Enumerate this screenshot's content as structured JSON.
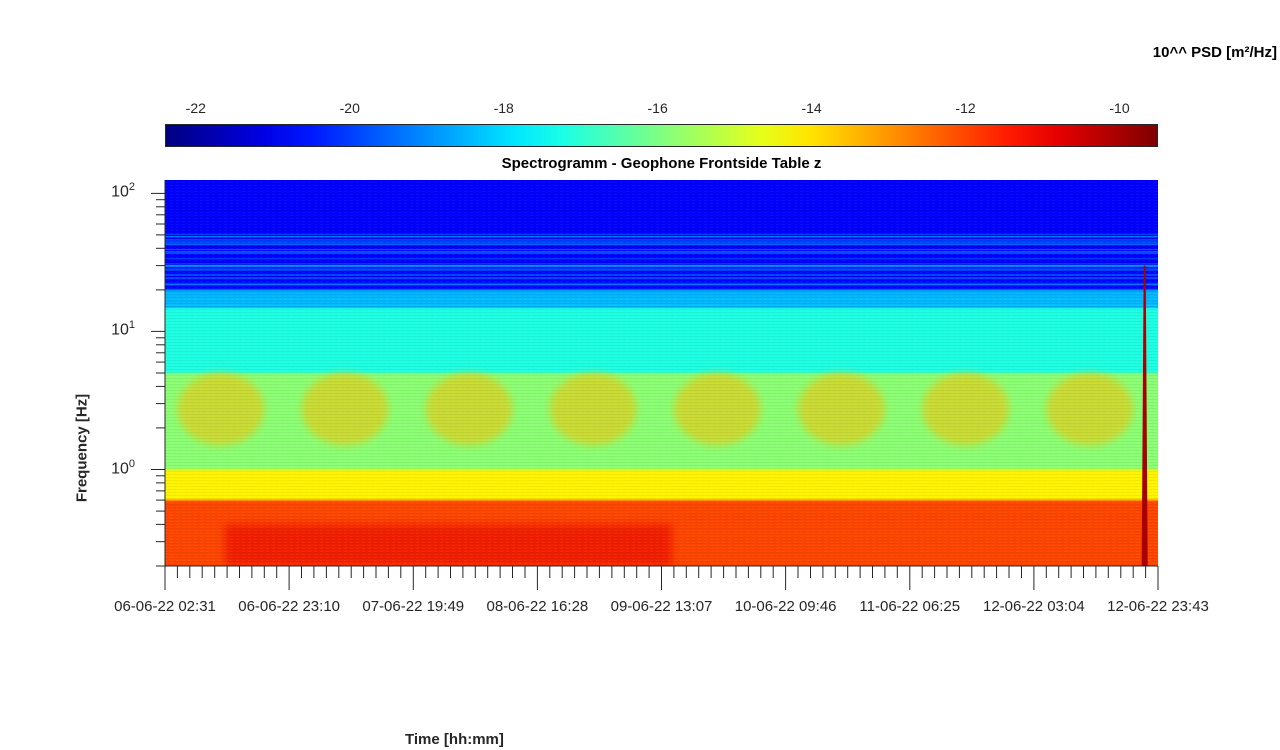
{
  "chart_data": {
    "type": "heatmap",
    "title": "Spectrogramm - Geophone Frontside Table z",
    "xlabel": "Time [hh:mm]",
    "ylabel": "Frequency [Hz]",
    "colorbar_label": "10^^ PSD [m²/Hz]",
    "colormap": "jet",
    "clim": [
      -22.4,
      -9.5
    ],
    "colorbar_ticks": [
      -22,
      -20,
      -18,
      -16,
      -14,
      -12,
      -10
    ],
    "y_scale": "log",
    "ylim": [
      0.2,
      125
    ],
    "yticks": [
      {
        "value": 1,
        "base": "10",
        "exp": "0"
      },
      {
        "value": 10,
        "base": "10",
        "exp": "1"
      },
      {
        "value": 100,
        "base": "10",
        "exp": "2"
      }
    ],
    "xticks": [
      "06-06-22 02:31",
      "06-06-22 23:10",
      "07-06-22 19:49",
      "08-06-22 16:28",
      "09-06-22 13:07",
      "10-06-22 09:46",
      "11-06-22 06:25",
      "12-06-22 03:04",
      "12-06-22 23:43"
    ],
    "features": {
      "background_bands_log10_psd": [
        {
          "freq_range": [
            20,
            125
          ],
          "level": -20.8
        },
        {
          "freq_range": [
            15,
            20
          ],
          "level": -18.5
        },
        {
          "freq_range": [
            5,
            15
          ],
          "level": -17.2
        },
        {
          "freq_range": [
            1,
            5
          ],
          "level": -15.8
        },
        {
          "freq_range": [
            0.6,
            1
          ],
          "level": -14.2
        },
        {
          "freq_range": [
            0.2,
            0.6
          ],
          "level": -12.0
        }
      ],
      "daily_activity_band": {
        "freq_range": [
          1.5,
          5
        ],
        "peak_level": -13.5
      },
      "event_near_end": {
        "time": "12-06-22 21:30",
        "freq_range": [
          0.2,
          30
        ],
        "level": -10
      }
    }
  }
}
